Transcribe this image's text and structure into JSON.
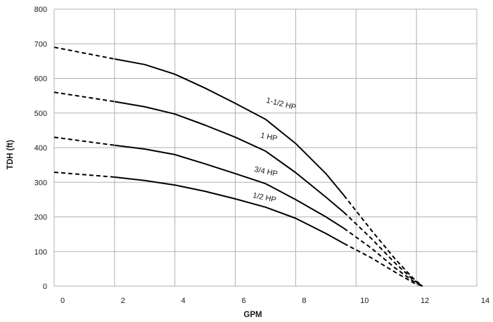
{
  "chart_data": {
    "type": "line",
    "title": "",
    "xlabel": "GPM",
    "ylabel": "TDH (ft)",
    "xlim": [
      0,
      14
    ],
    "ylim": [
      0,
      800
    ],
    "x_ticks": [
      0,
      2,
      4,
      6,
      8,
      10,
      12,
      14
    ],
    "y_ticks": [
      0,
      100,
      200,
      300,
      400,
      500,
      600,
      700,
      800
    ],
    "grid": true,
    "legend": "none",
    "series": [
      {
        "name": "1-1/2 HP",
        "dashed_start": [
          [
            0,
            690
          ],
          [
            2,
            656
          ]
        ],
        "solid": [
          [
            2,
            656
          ],
          [
            3,
            640
          ],
          [
            4,
            612
          ],
          [
            5,
            572
          ],
          [
            6,
            528
          ],
          [
            7,
            482
          ],
          [
            8,
            412
          ],
          [
            9,
            325
          ],
          [
            9.6,
            262
          ]
        ],
        "dashed_end": [
          [
            9.6,
            262
          ],
          [
            10.5,
            162
          ],
          [
            11.3,
            78
          ],
          [
            11.9,
            22
          ],
          [
            12.2,
            0
          ]
        ],
        "label_at": [
          7.5,
          520
        ],
        "label_angle": 14
      },
      {
        "name": "1 HP",
        "dashed_start": [
          [
            0,
            560
          ],
          [
            2,
            533
          ]
        ],
        "solid": [
          [
            2,
            533
          ],
          [
            3,
            518
          ],
          [
            4,
            497
          ],
          [
            5,
            465
          ],
          [
            6,
            430
          ],
          [
            7,
            390
          ],
          [
            8,
            328
          ],
          [
            9,
            257
          ],
          [
            9.6,
            213
          ]
        ],
        "dashed_end": [
          [
            9.6,
            213
          ],
          [
            10.5,
            138
          ],
          [
            11.3,
            66
          ],
          [
            11.9,
            18
          ],
          [
            12.2,
            0
          ]
        ],
        "label_at": [
          7.1,
          424
        ],
        "label_angle": 12
      },
      {
        "name": "3/4 HP",
        "dashed_start": [
          [
            0,
            430
          ],
          [
            2,
            407
          ]
        ],
        "solid": [
          [
            2,
            407
          ],
          [
            3,
            396
          ],
          [
            4,
            380
          ],
          [
            5,
            353
          ],
          [
            6,
            325
          ],
          [
            7,
            296
          ],
          [
            8,
            250
          ],
          [
            9,
            200
          ],
          [
            9.6,
            167
          ]
        ],
        "dashed_end": [
          [
            9.6,
            167
          ],
          [
            10.5,
            110
          ],
          [
            11.3,
            52
          ],
          [
            11.9,
            14
          ],
          [
            12.2,
            0
          ]
        ],
        "label_at": [
          7.0,
          324
        ],
        "label_angle": 12
      },
      {
        "name": "1/2 HP",
        "dashed_start": [
          [
            0,
            329
          ],
          [
            2,
            315
          ]
        ],
        "solid": [
          [
            2,
            315
          ],
          [
            3,
            305
          ],
          [
            4,
            292
          ],
          [
            5,
            274
          ],
          [
            6,
            252
          ],
          [
            7,
            228
          ],
          [
            8,
            196
          ],
          [
            9,
            152
          ],
          [
            9.6,
            123
          ]
        ],
        "dashed_end": [
          [
            9.6,
            123
          ],
          [
            10.5,
            82
          ],
          [
            11.3,
            40
          ],
          [
            11.9,
            10
          ],
          [
            12.2,
            0
          ]
        ],
        "label_at": [
          6.95,
          249
        ],
        "label_angle": 12
      }
    ]
  }
}
